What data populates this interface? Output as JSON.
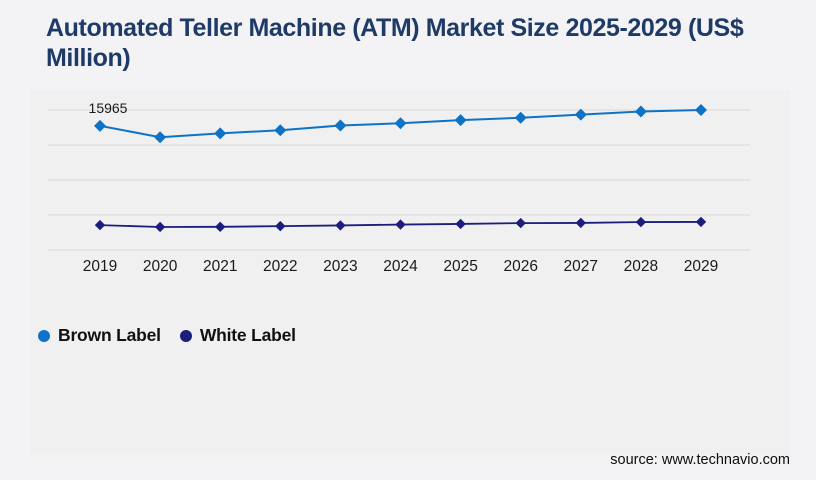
{
  "page": {
    "background_color": "#f3f3f5",
    "panel_color": "#f0f0f1"
  },
  "header": {
    "title": "Automated Teller Machine (ATM) Market Size 2025-2029 (US$ Million)",
    "title_color": "#1e3a66"
  },
  "chart_data": {
    "type": "line",
    "title": "Automated Teller Machine (ATM) Market Size 2025-2029 (US$ Million)",
    "categories": [
      "2019",
      "2020",
      "2021",
      "2022",
      "2023",
      "2024",
      "2025",
      "2026",
      "2027",
      "2028",
      "2029"
    ],
    "series": [
      {
        "name": "Brown Label",
        "color": "#0f73c5",
        "marker": "diamond",
        "values": [
          15965,
          14500,
          15000,
          15400,
          16000,
          16300,
          16700,
          17000,
          17400,
          17800,
          18000
        ]
      },
      {
        "name": "White Label",
        "color": "#1d1d7c",
        "marker": "diamond",
        "values": [
          3200,
          2960,
          2980,
          3070,
          3160,
          3270,
          3350,
          3460,
          3480,
          3590,
          3610
        ]
      }
    ],
    "xlabel": "",
    "ylabel": "",
    "ylim": [
      0,
      18000
    ],
    "gridline_count": 5,
    "grid_color": "#d7d7d9",
    "tick_label_color": "#1a1a1a",
    "legend_position": "bottom-left",
    "annotations": [
      {
        "series": 0,
        "index": 0,
        "text": "15965"
      }
    ]
  },
  "footer": {
    "source_text": "source: www.technavio.com"
  }
}
